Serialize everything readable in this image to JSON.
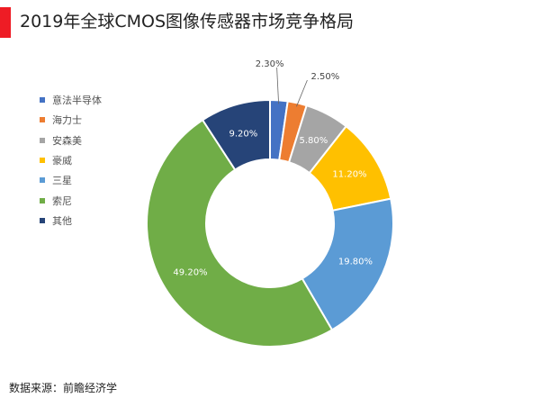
{
  "header": {
    "title": "2019年全球CMOS图像传感器市场竞争格局",
    "accent_color": "#ee1c25"
  },
  "footer": {
    "source": "数据来源：前瞻经济学"
  },
  "chart_data": {
    "type": "pie",
    "variant": "donut",
    "title": "2019年全球CMOS图像传感器市场竞争格局",
    "legend_position": "left",
    "categories": [
      "意法半导体",
      "海力士",
      "安森美",
      "豪威",
      "三星",
      "索尼",
      "其他"
    ],
    "values": [
      2.3,
      2.5,
      5.8,
      11.2,
      19.8,
      49.2,
      9.2
    ],
    "labels": [
      "2.30%",
      "2.50%",
      "5.80%",
      "11.20%",
      "19.80%",
      "49.20%",
      "9.20%"
    ],
    "colors": [
      "#4472c4",
      "#ed7d31",
      "#a5a5a5",
      "#ffc000",
      "#5b9bd5",
      "#70ad47",
      "#264478"
    ]
  }
}
